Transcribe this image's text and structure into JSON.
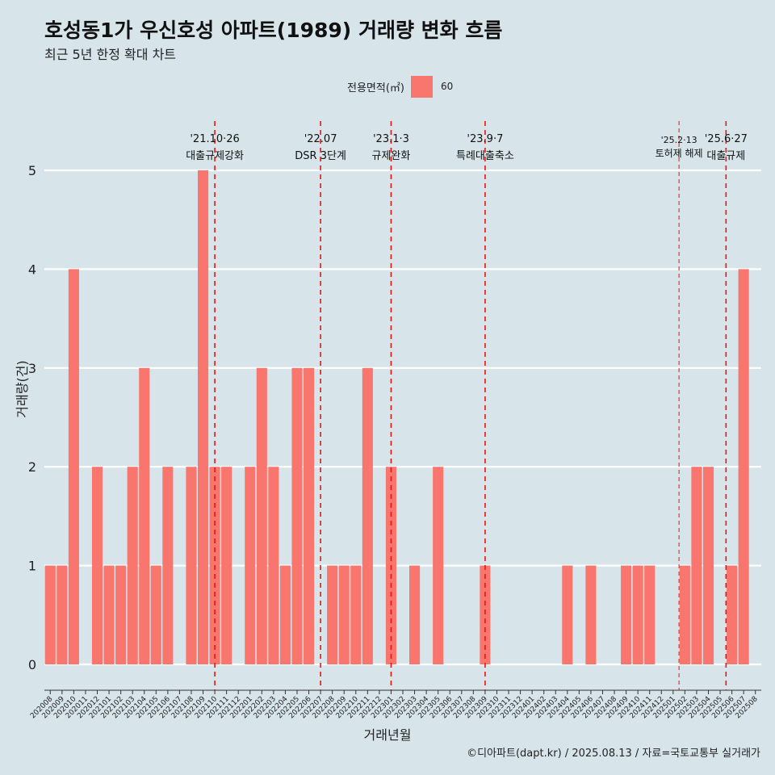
{
  "title": "호성동1가 우신호성 아파트(1989) 거래량 변화 흐름",
  "subtitle": "최근 5년 한정 확대 차트",
  "legend": {
    "title": "전용면적(㎡)",
    "series_label": "60"
  },
  "caption": "©디아파트(dapt.kr) / 2025.08.13 / 자료=국토교통부 실거래가",
  "colors": {
    "bar": "#f8766d",
    "background": "#d7e4ea",
    "grid": "#ffffff",
    "event_line": "#e8160e"
  },
  "chart_data": {
    "type": "bar",
    "xlabel": "거래년월",
    "ylabel": "거래량(건)",
    "ylim": [
      0,
      5
    ],
    "yticks": [
      0,
      1,
      2,
      3,
      4,
      5
    ],
    "grid": "horizontal",
    "legend_position": "top",
    "categories": [
      "202008",
      "202009",
      "202010",
      "202011",
      "202012",
      "202101",
      "202102",
      "202103",
      "202104",
      "202105",
      "202106",
      "202107",
      "202108",
      "202109",
      "202110",
      "202111",
      "202112",
      "202201",
      "202202",
      "202203",
      "202204",
      "202205",
      "202206",
      "202207",
      "202208",
      "202209",
      "202210",
      "202211",
      "202212",
      "202301",
      "202302",
      "202303",
      "202304",
      "202305",
      "202306",
      "202307",
      "202308",
      "202309",
      "202310",
      "202311",
      "202312",
      "202401",
      "202402",
      "202403",
      "202404",
      "202405",
      "202406",
      "202407",
      "202408",
      "202409",
      "202410",
      "202411",
      "202412",
      "202501",
      "202502",
      "202503",
      "202504",
      "202505",
      "202506",
      "202507",
      "202508"
    ],
    "series": [
      {
        "name": "60",
        "values": [
          1,
          1,
          4,
          0,
          2,
          1,
          1,
          2,
          3,
          1,
          2,
          0,
          2,
          5,
          2,
          2,
          0,
          2,
          3,
          2,
          1,
          3,
          3,
          0,
          1,
          1,
          1,
          3,
          0,
          2,
          0,
          1,
          0,
          2,
          0,
          0,
          0,
          1,
          0,
          0,
          0,
          0,
          0,
          0,
          1,
          0,
          1,
          0,
          0,
          1,
          1,
          1,
          0,
          0,
          1,
          2,
          2,
          0,
          1,
          4,
          0
        ]
      }
    ],
    "events": [
      {
        "date": "'21.10·26",
        "label": "대출규제강화",
        "position": 14.5,
        "style": "dashed"
      },
      {
        "date": "'22.07",
        "label": "DSR 3단계",
        "position": 23.5,
        "style": "dashed"
      },
      {
        "date": "'23.1·3",
        "label": "규제완화",
        "position": 29.5,
        "style": "dashed"
      },
      {
        "date": "'23.9·7",
        "label": "특례대출축소",
        "position": 37.5,
        "style": "dashed"
      },
      {
        "date": "'25.2·13",
        "label": "토허제 해제",
        "position": 54.0,
        "style": "thin-dashed"
      },
      {
        "date": "'25.6·27",
        "label": "대출규제",
        "position": 58.0,
        "style": "dashed"
      }
    ]
  }
}
